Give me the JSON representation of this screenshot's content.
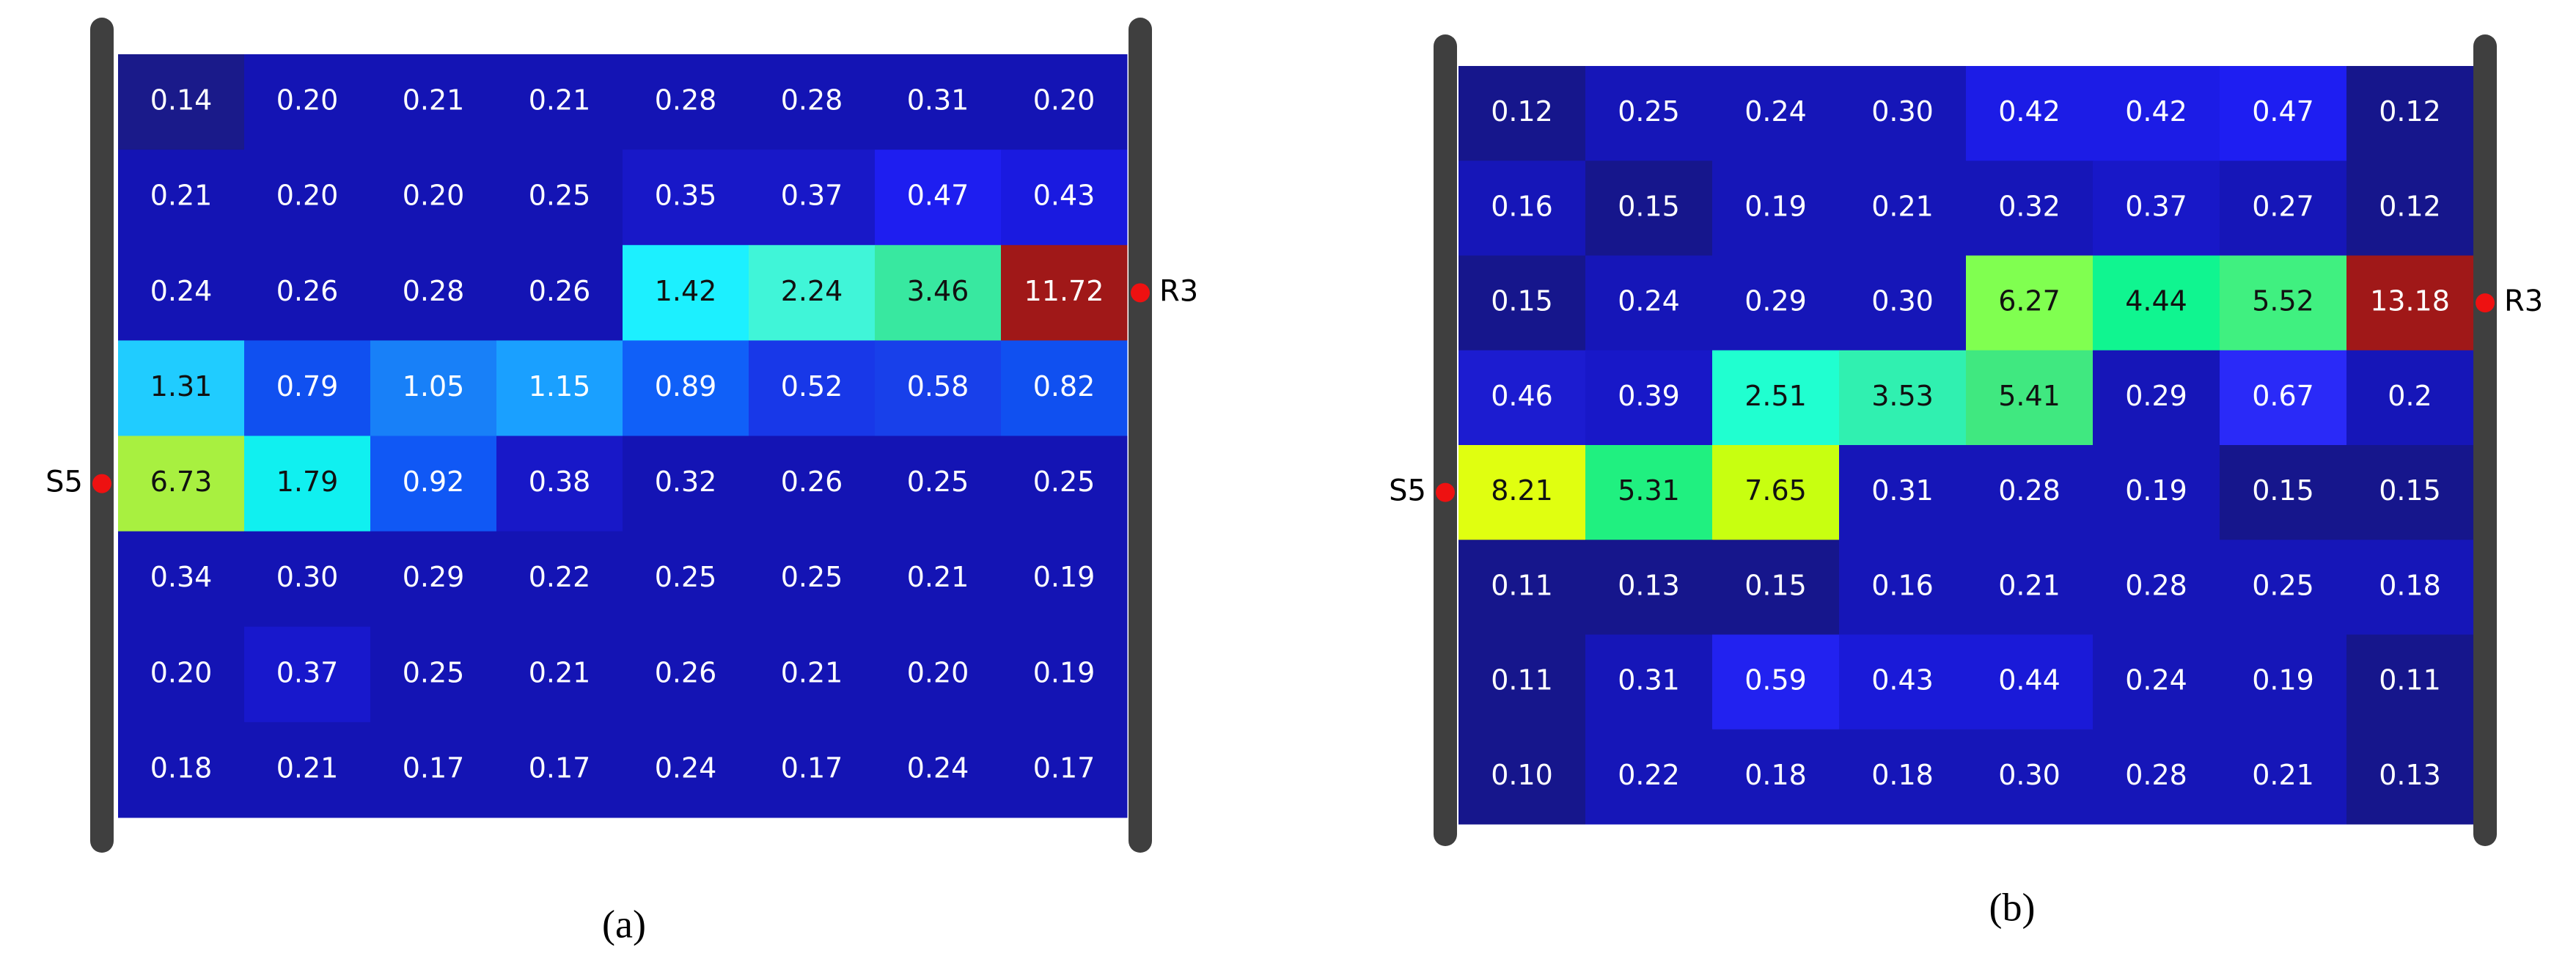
{
  "chart_data": [
    {
      "type": "heatmap",
      "caption": "(a)",
      "source_label": "S5",
      "receiver_label": "R3",
      "source_row": 4,
      "receiver_row": 2,
      "values": [
        [
          0.14,
          0.2,
          0.21,
          0.21,
          0.28,
          0.28,
          0.31,
          0.2
        ],
        [
          0.21,
          0.2,
          0.2,
          0.25,
          0.35,
          0.37,
          0.47,
          0.43
        ],
        [
          0.24,
          0.26,
          0.28,
          0.26,
          1.42,
          2.24,
          3.46,
          11.72
        ],
        [
          1.31,
          0.79,
          1.05,
          1.15,
          0.89,
          0.52,
          0.58,
          0.82
        ],
        [
          6.73,
          1.79,
          0.92,
          0.38,
          0.32,
          0.26,
          0.25,
          0.25
        ],
        [
          0.34,
          0.3,
          0.29,
          0.22,
          0.25,
          0.25,
          0.21,
          0.19
        ],
        [
          0.2,
          0.37,
          0.25,
          0.21,
          0.26,
          0.21,
          0.2,
          0.19
        ],
        [
          0.18,
          0.21,
          0.17,
          0.17,
          0.24,
          0.17,
          0.24,
          0.17
        ]
      ],
      "value_labels": [
        [
          "0.14",
          "0.20",
          "0.21",
          "0.21",
          "0.28",
          "0.28",
          "0.31",
          "0.20"
        ],
        [
          "0.21",
          "0.20",
          "0.20",
          "0.25",
          "0.35",
          "0.37",
          "0.47",
          "0.43"
        ],
        [
          "0.24",
          "0.26",
          "0.28",
          "0.26",
          "1.42",
          "2.24",
          "3.46",
          "11.72"
        ],
        [
          "1.31",
          "0.79",
          "1.05",
          "1.15",
          "0.89",
          "0.52",
          "0.58",
          "0.82"
        ],
        [
          "6.73",
          "1.79",
          "0.92",
          "0.38",
          "0.32",
          "0.26",
          "0.25",
          "0.25"
        ],
        [
          "0.34",
          "0.30",
          "0.29",
          "0.22",
          "0.25",
          "0.25",
          "0.21",
          "0.19"
        ],
        [
          "0.20",
          "0.37",
          "0.25",
          "0.21",
          "0.26",
          "0.21",
          "0.20",
          "0.19"
        ],
        [
          "0.18",
          "0.21",
          "0.17",
          "0.17",
          "0.24",
          "0.17",
          "0.24",
          "0.17"
        ]
      ],
      "cell_colors": [
        [
          "#1a1a8a",
          "#1414b4",
          "#1414b4",
          "#1414b4",
          "#1414b4",
          "#1414b4",
          "#1414b4",
          "#1414b4"
        ],
        [
          "#1414b4",
          "#1414b4",
          "#1414b4",
          "#1414b4",
          "#1818c8",
          "#1818c8",
          "#1e1ef0",
          "#1a1ae0"
        ],
        [
          "#1414b4",
          "#1414b4",
          "#1414b4",
          "#1414b4",
          "#1cf0ff",
          "#40f5d8",
          "#38e8a0",
          "#a01818"
        ],
        [
          "#20ccff",
          "#1050f0",
          "#1880f8",
          "#1aa0ff",
          "#1060f8",
          "#1838e8",
          "#1840ea",
          "#1050f0"
        ],
        [
          "#a8f040",
          "#10f0f0",
          "#1058f5",
          "#1818c8",
          "#1414b4",
          "#1414b4",
          "#1414b4",
          "#1414b4"
        ],
        [
          "#1414b4",
          "#1414b4",
          "#1414b4",
          "#1414b4",
          "#1414b4",
          "#1414b4",
          "#1414b4",
          "#1414b4"
        ],
        [
          "#1414b4",
          "#1818cc",
          "#1414b4",
          "#1414b4",
          "#1414b4",
          "#1414b4",
          "#1414b4",
          "#1414b4"
        ],
        [
          "#1414b4",
          "#1414b4",
          "#1414b4",
          "#1414b4",
          "#1414b4",
          "#1414b4",
          "#1414b4",
          "#1414b4"
        ]
      ]
    },
    {
      "type": "heatmap",
      "caption": "(b)",
      "source_label": "S5",
      "receiver_label": "R3",
      "source_row": 4,
      "receiver_row": 2,
      "values": [
        [
          0.12,
          0.25,
          0.24,
          0.3,
          0.42,
          0.42,
          0.47,
          0.12
        ],
        [
          0.16,
          0.15,
          0.19,
          0.21,
          0.32,
          0.37,
          0.27,
          0.12
        ],
        [
          0.15,
          0.24,
          0.29,
          0.3,
          6.27,
          4.44,
          5.52,
          13.18
        ],
        [
          0.46,
          0.39,
          2.51,
          3.53,
          5.41,
          0.29,
          0.67,
          0.2
        ],
        [
          8.21,
          5.31,
          7.65,
          0.31,
          0.28,
          0.19,
          0.15,
          0.15
        ],
        [
          0.11,
          0.13,
          0.15,
          0.16,
          0.21,
          0.28,
          0.25,
          0.18
        ],
        [
          0.11,
          0.31,
          0.59,
          0.43,
          0.44,
          0.24,
          0.19,
          0.11
        ],
        [
          0.1,
          0.22,
          0.18,
          0.18,
          0.3,
          0.28,
          0.21,
          0.13
        ]
      ],
      "value_labels": [
        [
          "0.12",
          "0.25",
          "0.24",
          "0.30",
          "0.42",
          "0.42",
          "0.47",
          "0.12"
        ],
        [
          "0.16",
          "0.15",
          "0.19",
          "0.21",
          "0.32",
          "0.37",
          "0.27",
          "0.12"
        ],
        [
          "0.15",
          "0.24",
          "0.29",
          "0.30",
          "6.27",
          "4.44",
          "5.52",
          "13.18"
        ],
        [
          "0.46",
          "0.39",
          "2.51",
          "3.53",
          "5.41",
          "0.29",
          "0.67",
          "0.2"
        ],
        [
          "8.21",
          "5.31",
          "7.65",
          "0.31",
          "0.28",
          "0.19",
          "0.15",
          "0.15"
        ],
        [
          "0.11",
          "0.13",
          "0.15",
          "0.16",
          "0.21",
          "0.28",
          "0.25",
          "0.18"
        ],
        [
          "0.11",
          "0.31",
          "0.59",
          "0.43",
          "0.44",
          "0.24",
          "0.19",
          "0.11"
        ],
        [
          "0.10",
          "0.22",
          "0.18",
          "0.18",
          "0.30",
          "0.28",
          "0.21",
          "0.13"
        ]
      ],
      "cell_colors": [
        [
          "#16168c",
          "#1616b8",
          "#1616b8",
          "#1616b8",
          "#1c1ce6",
          "#1c1ce6",
          "#1e1ef2",
          "#16168c"
        ],
        [
          "#1616b8",
          "#16168c",
          "#1616b8",
          "#1616b8",
          "#1616b8",
          "#1818c8",
          "#1616b8",
          "#16168c"
        ],
        [
          "#16168c",
          "#1616b8",
          "#1616b8",
          "#1616b8",
          "#80ff50",
          "#10f590",
          "#40f080",
          "#a01818"
        ],
        [
          "#1c1cd0",
          "#1818c8",
          "#20ffd0",
          "#30f0b0",
          "#40e880",
          "#1616b8",
          "#2a2af8",
          "#1616b8"
        ],
        [
          "#e0ff10",
          "#20f080",
          "#c8ff10",
          "#1616b8",
          "#1616b8",
          "#1616b8",
          "#16168c",
          "#16168c"
        ],
        [
          "#16168c",
          "#16168c",
          "#16168c",
          "#1616b8",
          "#1616b8",
          "#1616b8",
          "#1616b8",
          "#1616b8"
        ],
        [
          "#16168c",
          "#1616b8",
          "#2222f0",
          "#1a1ad8",
          "#1a1ad8",
          "#1616b8",
          "#1616b8",
          "#16168c"
        ],
        [
          "#16168c",
          "#1616b8",
          "#1616b8",
          "#1616b8",
          "#1616b8",
          "#1616b8",
          "#1616b8",
          "#16168c"
        ]
      ]
    }
  ]
}
